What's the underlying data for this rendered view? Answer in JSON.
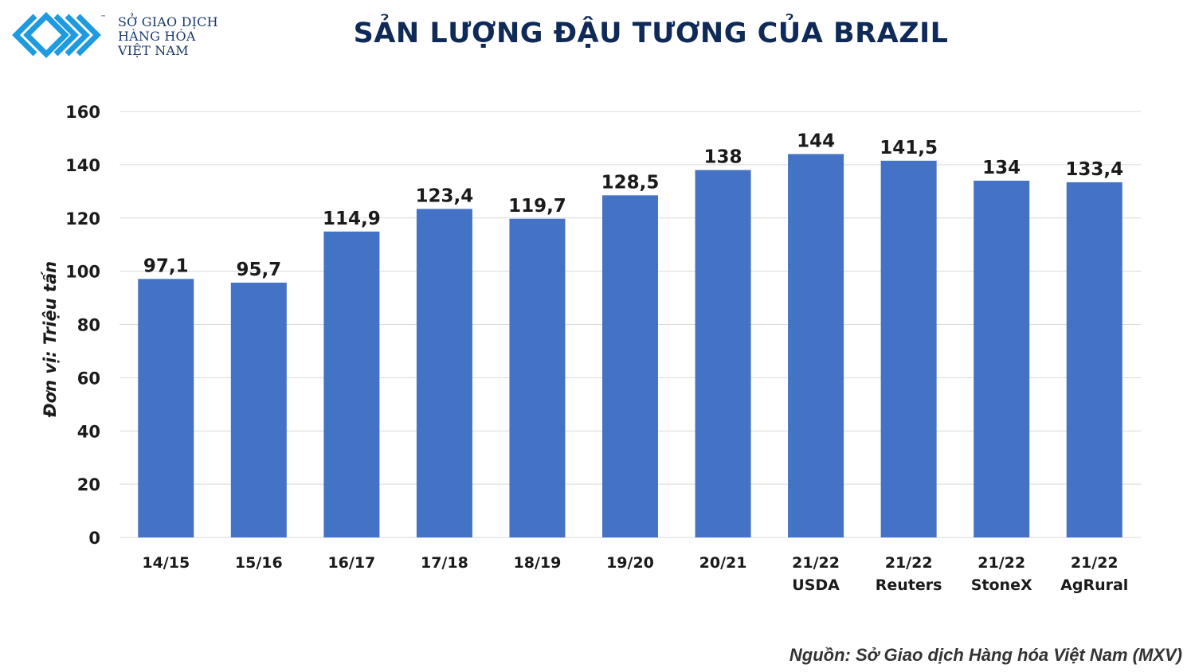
{
  "logo": {
    "name": "mxv-logo",
    "lines": [
      "SỞ GIAO DỊCH",
      "HÀNG HÓA",
      "VIỆT NAM"
    ],
    "tm": "™",
    "color": "#1e9be0"
  },
  "title": "SẢN LƯỢNG ĐẬU TƯƠNG CỦA BRAZIL",
  "source": "Nguồn: Sở Giao dịch Hàng hóa Việt Nam (MXV)",
  "colors": {
    "bar": "#4472c4",
    "grid": "#d9d9d9",
    "text": "#1a1a1a"
  },
  "chart_data": {
    "type": "bar",
    "title": "SẢN LƯỢNG ĐẬU TƯƠNG CỦA BRAZIL",
    "xlabel": "",
    "ylabel": "Đơn vị: Triệu tấn",
    "ylim": [
      0,
      160
    ],
    "yticks": [
      0,
      20,
      40,
      60,
      80,
      100,
      120,
      140,
      160
    ],
    "grid": true,
    "legend": "none",
    "categories": [
      [
        "14/15"
      ],
      [
        "15/16"
      ],
      [
        "16/17"
      ],
      [
        "17/18"
      ],
      [
        "18/19"
      ],
      [
        "19/20"
      ],
      [
        "20/21"
      ],
      [
        "21/22",
        "USDA"
      ],
      [
        "21/22",
        "Reuters"
      ],
      [
        "21/22",
        "StoneX"
      ],
      [
        "21/22",
        "AgRural"
      ]
    ],
    "values": [
      97.1,
      95.7,
      114.9,
      123.4,
      119.7,
      128.5,
      138,
      144,
      141.5,
      134,
      133.4
    ],
    "value_labels": [
      "97,1",
      "95,7",
      "114,9",
      "123,4",
      "119,7",
      "128,5",
      "138",
      "144",
      "141,5",
      "134",
      "133,4"
    ]
  }
}
